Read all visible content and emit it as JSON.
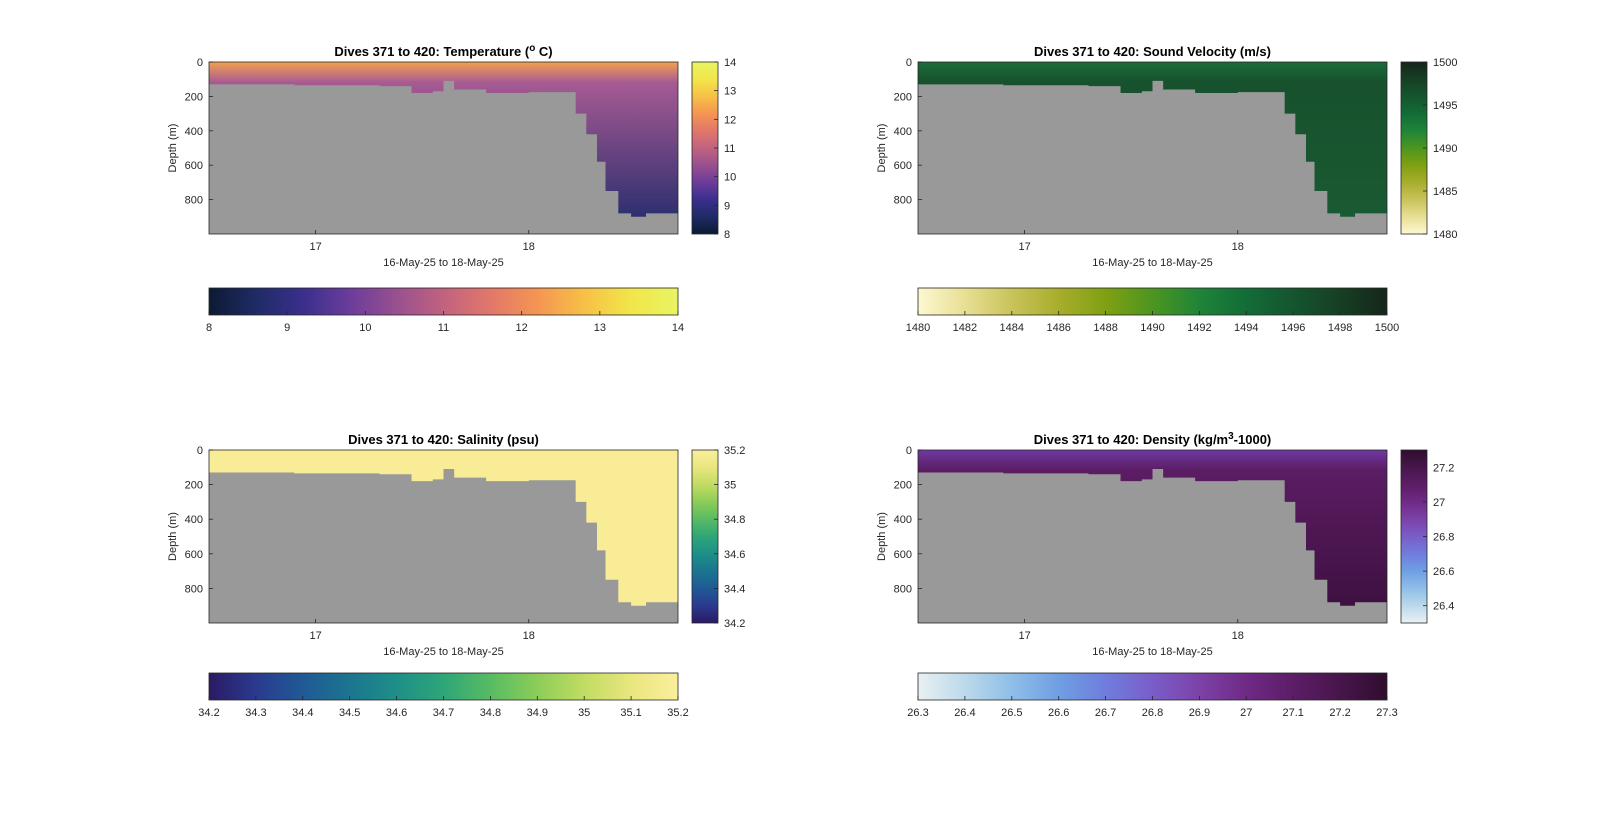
{
  "chart_data": [
    {
      "type": "heatmap",
      "id": "temperature",
      "title_parts": {
        "before": "Dives 371 to 420: Temperature (",
        "sup": "o",
        "after": " C)"
      },
      "xlabel": "16-May-25 to 18-May-25",
      "ylabel": "Depth (m)",
      "x_ticks": [
        "17",
        "18"
      ],
      "y_ticks": [
        "0",
        "200",
        "400",
        "600",
        "800"
      ],
      "ylim": [
        0,
        1000
      ],
      "xlim": [
        16.5,
        18.7
      ],
      "colorbar_range": [
        8,
        14
      ],
      "colorbar_ticks": [
        "14",
        "13",
        "12",
        "11",
        "10",
        "9",
        "8"
      ],
      "h_colorbar_ticks": [
        "8",
        "9",
        "10",
        "11",
        "12",
        "13",
        "14"
      ],
      "colormap": [
        "#0c1a33",
        "#1f2b66",
        "#3a2f8c",
        "#6b3c9a",
        "#99508f",
        "#c1627f",
        "#e2776a",
        "#f49553",
        "#f7c046",
        "#f1e64a",
        "#e9f463"
      ],
      "water_color_top": "#f3a050",
      "water_color_mid": "#a65a93",
      "water_color_deep": "#1e2a6a",
      "land_color": "#999999"
    },
    {
      "type": "heatmap",
      "id": "sound_velocity",
      "title": "Dives 371 to 420: Sound Velocity (m/s)",
      "xlabel": "16-May-25 to 18-May-25",
      "ylabel": "Depth (m)",
      "x_ticks": [
        "17",
        "18"
      ],
      "y_ticks": [
        "0",
        "200",
        "400",
        "600",
        "800"
      ],
      "ylim": [
        0,
        1000
      ],
      "xlim": [
        16.5,
        18.7
      ],
      "colorbar_range": [
        1480,
        1500
      ],
      "colorbar_ticks": [
        "1500",
        "1495",
        "1490",
        "1485",
        "1480"
      ],
      "h_colorbar_ticks": [
        "1480",
        "1482",
        "1484",
        "1486",
        "1488",
        "1490",
        "1492",
        "1494",
        "1496",
        "1498",
        "1500"
      ],
      "colormap": [
        "#fdf8d2",
        "#e8df94",
        "#c9c35a",
        "#a8ad2c",
        "#7fa012",
        "#4d9520",
        "#1f8438",
        "#136c37",
        "#15552f",
        "#163f24",
        "#15261a"
      ],
      "water_color_top": "#1b6c3a",
      "water_color_mid": "#17512d",
      "water_color_deep": "#1a5b33",
      "land_color": "#999999"
    },
    {
      "type": "heatmap",
      "id": "salinity",
      "title": "Dives 371 to 420: Salinity (psu)",
      "xlabel": "16-May-25 to 18-May-25",
      "ylabel": "Depth (m)",
      "x_ticks": [
        "17",
        "18"
      ],
      "y_ticks": [
        "0",
        "200",
        "400",
        "600",
        "800"
      ],
      "ylim": [
        0,
        1000
      ],
      "xlim": [
        16.5,
        18.7
      ],
      "colorbar_range": [
        34.2,
        35.2
      ],
      "colorbar_ticks": [
        "35.2",
        "35",
        "34.8",
        "34.6",
        "34.4",
        "34.2"
      ],
      "h_colorbar_ticks": [
        "34.2",
        "34.3",
        "34.4",
        "34.5",
        "34.6",
        "34.7",
        "34.8",
        "34.9",
        "35",
        "35.1",
        "35.2"
      ],
      "colormap": [
        "#2a1a63",
        "#2b3a8f",
        "#1f5a95",
        "#1b7590",
        "#1e8f88",
        "#2ea678",
        "#58bb63",
        "#8ccd58",
        "#c1dc62",
        "#e9e67f",
        "#fbef9b"
      ],
      "water_color_top": "#f9ec96",
      "water_color_mid": "#f9ec96",
      "water_color_deep": "#f9ec96",
      "land_color": "#999999"
    },
    {
      "type": "heatmap",
      "id": "density",
      "title_parts": {
        "before": "Dives 371 to 420: Density (kg/m",
        "sup": "3",
        "after": "-1000)"
      },
      "xlabel": "16-May-25 to 18-May-25",
      "ylabel": "Depth (m)",
      "x_ticks": [
        "17",
        "18"
      ],
      "y_ticks": [
        "0",
        "200",
        "400",
        "600",
        "800"
      ],
      "ylim": [
        0,
        1000
      ],
      "xlim": [
        16.5,
        18.7
      ],
      "colorbar_range": [
        26.3,
        27.3
      ],
      "colorbar_ticks": [
        "27.2",
        "27",
        "26.8",
        "26.6",
        "26.4"
      ],
      "h_colorbar_ticks": [
        "26.3",
        "26.4",
        "26.5",
        "26.6",
        "26.7",
        "26.8",
        "26.9",
        "27",
        "27.1",
        "27.2",
        "27.3"
      ],
      "colormap": [
        "#e8f1f3",
        "#bcd9ea",
        "#8fbee8",
        "#6f9fe3",
        "#6f7ddc",
        "#7a5dc8",
        "#7c42a8",
        "#6f2a86",
        "#5c1d66",
        "#47164b",
        "#2f0d2e"
      ],
      "water_color_top": "#6f3aa0",
      "water_color_mid": "#5b1c63",
      "water_color_deep": "#3a0f3c",
      "land_color": "#999999"
    }
  ],
  "bathymetry": {
    "x": [
      16.5,
      16.7,
      16.9,
      17.1,
      17.3,
      17.45,
      17.55,
      17.6,
      17.65,
      17.8,
      18.0,
      18.2,
      18.22,
      18.27,
      18.32,
      18.36,
      18.42,
      18.48,
      18.55,
      18.7
    ],
    "depth": [
      130,
      130,
      135,
      135,
      140,
      180,
      170,
      110,
      160,
      180,
      175,
      175,
      300,
      420,
      580,
      750,
      880,
      900,
      880,
      870
    ]
  }
}
